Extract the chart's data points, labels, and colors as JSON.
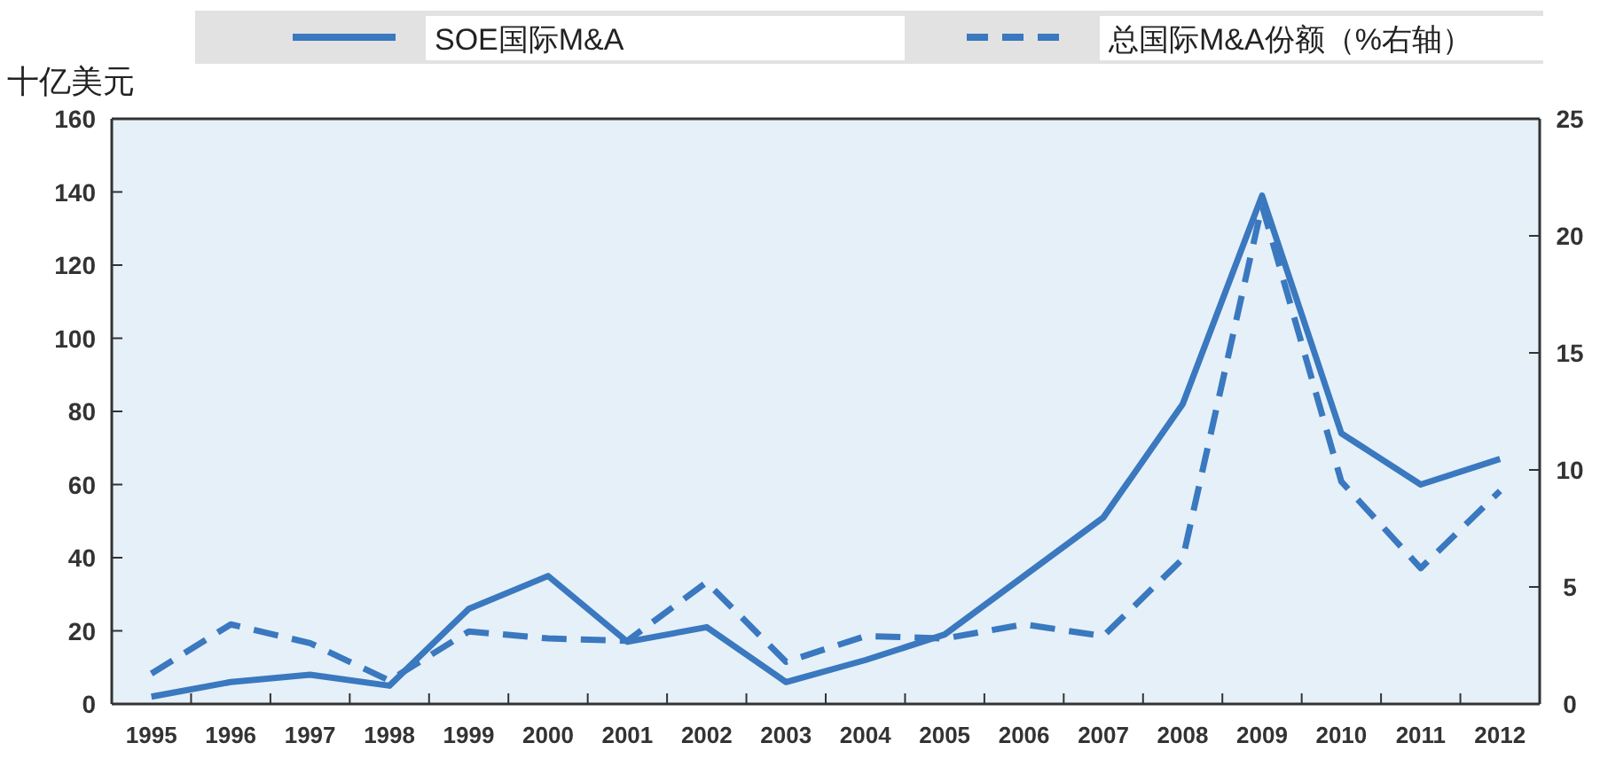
{
  "chart_data": {
    "type": "line",
    "ylabel": "十亿美元",
    "categories": [
      "1995",
      "1996",
      "1997",
      "1998",
      "1999",
      "2000",
      "2001",
      "2002",
      "2003",
      "2004",
      "2005",
      "2006",
      "2007",
      "2008",
      "2009",
      "2010",
      "2011",
      "2012"
    ],
    "series": [
      {
        "name": "SOE国际M&A",
        "color": "#3a78bf",
        "line_style": "solid",
        "values": [
          2,
          6,
          8,
          5,
          26,
          35,
          17,
          21,
          6,
          12,
          19,
          35,
          51,
          82,
          139,
          74,
          60,
          67
        ]
      },
      {
        "name": "总国际M&A份额（%右轴）",
        "color": "#3a78bf",
        "line_style": "dashed",
        "axis": "y2",
        "values": [
          1.3,
          3.4,
          2.6,
          1.0,
          3.1,
          2.8,
          2.7,
          5.2,
          1.8,
          2.9,
          2.8,
          3.4,
          2.9,
          6.2,
          21.3,
          9.5,
          5.8,
          9.1
        ]
      }
    ],
    "ylim": [
      0,
      160
    ],
    "yticks": [
      0,
      20,
      40,
      60,
      80,
      100,
      120,
      140,
      160
    ],
    "y2lim": [
      0,
      25
    ],
    "y2ticks": [
      0,
      5,
      10,
      15,
      20,
      25
    ],
    "grid": false,
    "legend": "top"
  }
}
